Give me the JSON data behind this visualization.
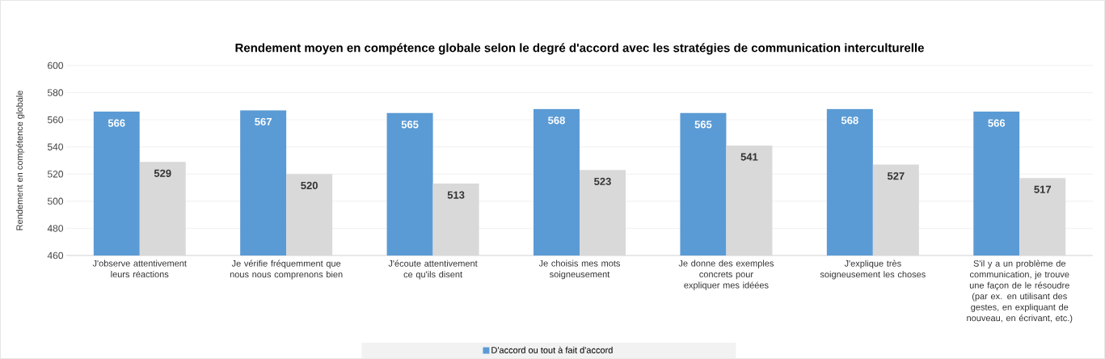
{
  "chart_data": {
    "type": "bar",
    "title": "Rendement moyen en compétence globale selon le degré d'accord avec les stratégies de communication interculturelle",
    "ylabel": "Rendement en compétence globale",
    "categories": [
      "J'observe attentivement leurs réactions",
      "Je vérifie fréquemment que nous nous comprenons bien",
      "J'écoute attentivement ce qu'ils disent",
      "Je choisis mes mots soigneusement",
      "Je donne des exemples concrets pour expliquer mes idéées",
      "J'explique très soigneusement les choses",
      "S'il y a un problème de communication, je trouve une façon de le résoudre (par ex. en utilisant des gestes, en expliquant de nouveau, en écrivant, etc.)"
    ],
    "series": [
      {
        "name": "D'accord ou tout à fait d'accord",
        "color": "#5b9bd5",
        "values": [
          566,
          567,
          565,
          568,
          565,
          568,
          566
        ]
      },
      {
        "color": "#d9d9d9",
        "values": [
          529,
          520,
          513,
          523,
          541,
          527,
          517
        ]
      }
    ],
    "ylim": [
      460,
      600
    ],
    "yticks": [
      460,
      480,
      500,
      520,
      540,
      560,
      580,
      600
    ],
    "grid": "y",
    "legend": "bottom",
    "data_labels": true
  }
}
